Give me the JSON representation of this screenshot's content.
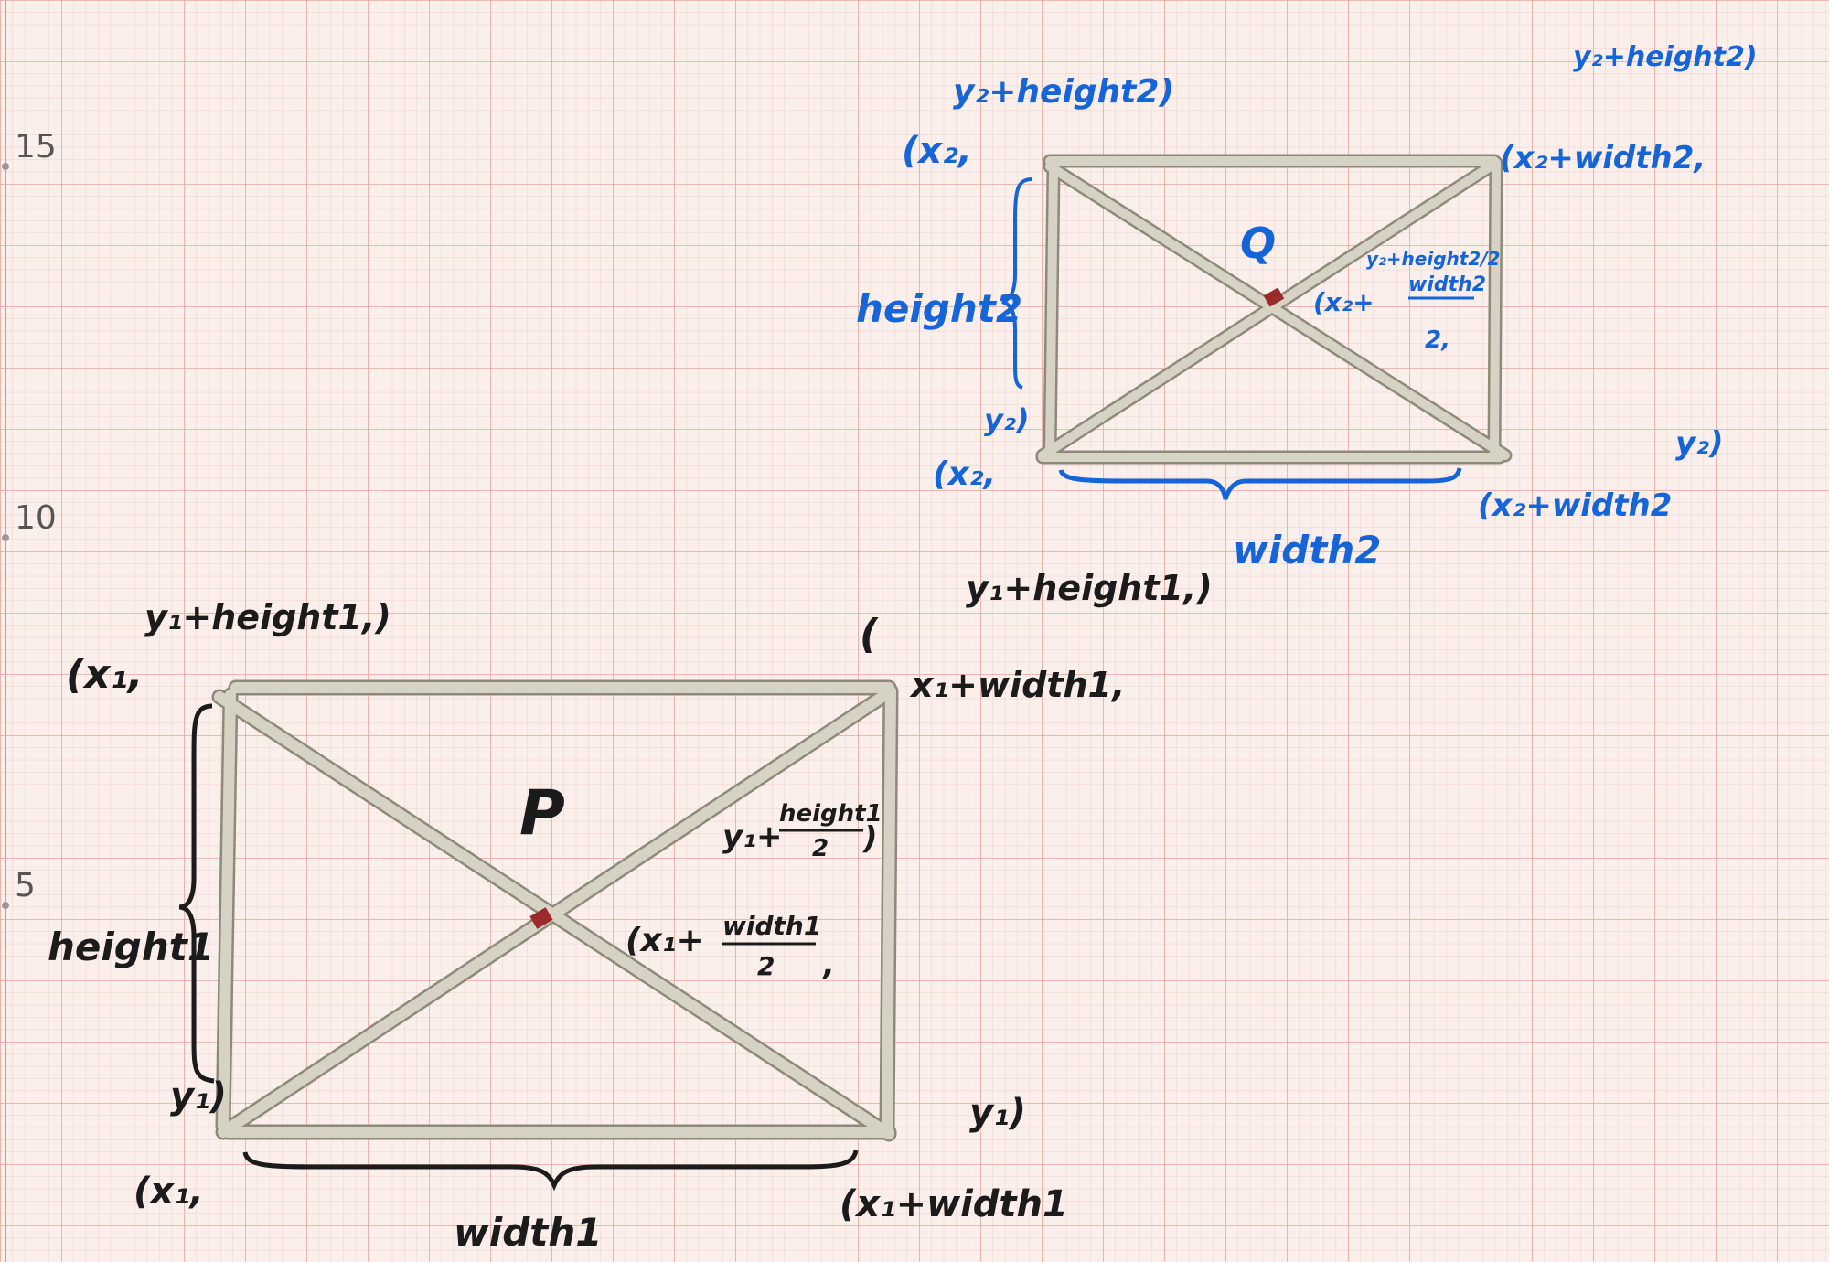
{
  "axis": {
    "labels": [
      "15",
      "10",
      "5"
    ]
  },
  "rect_p": {
    "name": "P",
    "top_left_x": "(x₁,",
    "top_left_y": "y₁+height1,)",
    "top_right_open": "(",
    "top_right_x": "x₁+width1,",
    "top_right_y": "y₁+height1,)",
    "bottom_left_x": "(x₁,",
    "bottom_left_y": "y₁)",
    "bottom_right_x": "(x₁+width1",
    "bottom_right_y": "y₁)",
    "center_y_prefix": "y₁+",
    "center_y_num": "height1",
    "center_y_den": "2",
    "center_x_prefix": "(x₁+",
    "center_x_num": "width1",
    "center_x_den": "2",
    "height_label": "height1",
    "width_label": "width1",
    "ink": "#1b1b1b"
  },
  "rect_q": {
    "name": "Q",
    "top_left_x": "(x₂,",
    "top_left_y": "y₂+height2)",
    "top_right_x": "(x₂+width2,",
    "top_right_y": "y₂+height2)",
    "bottom_left_x": "(x₂,",
    "bottom_left_y": "y₂)",
    "bottom_right_x": "(x₂+width2",
    "bottom_right_y": "y₂)",
    "center_y": "y₂+height2/2",
    "center_x_prefix": "(x₂+",
    "center_x_num": "width2",
    "center_x_den": "2,",
    "height_label": "height2",
    "width_label": "width2",
    "ink": "#1565d8"
  },
  "colors": {
    "paper": "#fbefec",
    "grid_minor": "#efcfc8",
    "grid_major": "#e3a79c",
    "stick": "#d7d3c4",
    "stick_edge": "#8e8a7a",
    "center_dot": "#9b2b2b"
  }
}
